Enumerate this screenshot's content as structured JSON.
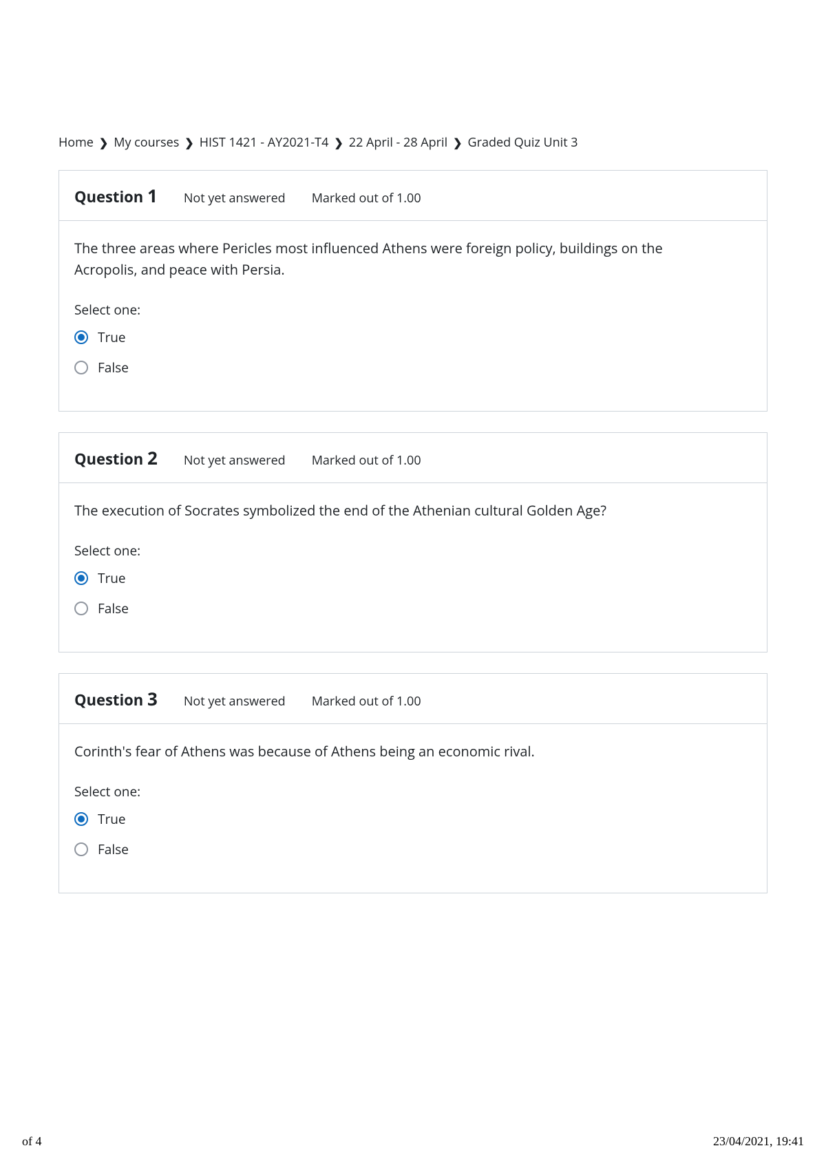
{
  "breadcrumb": {
    "items": [
      {
        "label": "Home"
      },
      {
        "label": "My courses"
      },
      {
        "label": "HIST 1421 - AY2021-T4"
      },
      {
        "label": "22 April - 28 April"
      },
      {
        "label": "Graded Quiz Unit 3"
      }
    ]
  },
  "questions": [
    {
      "label_prefix": "Question",
      "number": "1",
      "status": "Not yet answered",
      "marks": "Marked out of 1.00",
      "text": "The three areas where Pericles most influenced Athens were foreign policy, buildings on the Acropolis, and peace with Persia.",
      "select_label": "Select one:",
      "options": [
        {
          "label": "True",
          "selected": true
        },
        {
          "label": "False",
          "selected": false
        }
      ]
    },
    {
      "label_prefix": "Question",
      "number": "2",
      "status": "Not yet answered",
      "marks": "Marked out of 1.00",
      "text": "The execution of Socrates symbolized the end of the Athenian cultural Golden Age?",
      "select_label": "Select one:",
      "options": [
        {
          "label": "True",
          "selected": true
        },
        {
          "label": "False",
          "selected": false
        }
      ]
    },
    {
      "label_prefix": "Question",
      "number": "3",
      "status": "Not yet answered",
      "marks": "Marked out of 1.00",
      "text": "Corinth's fear of Athens was because of Athens being an economic rival.",
      "select_label": "Select one:",
      "options": [
        {
          "label": "True",
          "selected": true
        },
        {
          "label": "False",
          "selected": false
        }
      ]
    }
  ],
  "footer": {
    "page_indicator": "of 4",
    "timestamp": "23/04/2021, 19:41"
  },
  "colors": {
    "border": "#ced4da",
    "text": "#1d2125",
    "radio_selected": "#0f6cbf",
    "radio_unselected": "#8f959e",
    "background": "#ffffff"
  }
}
